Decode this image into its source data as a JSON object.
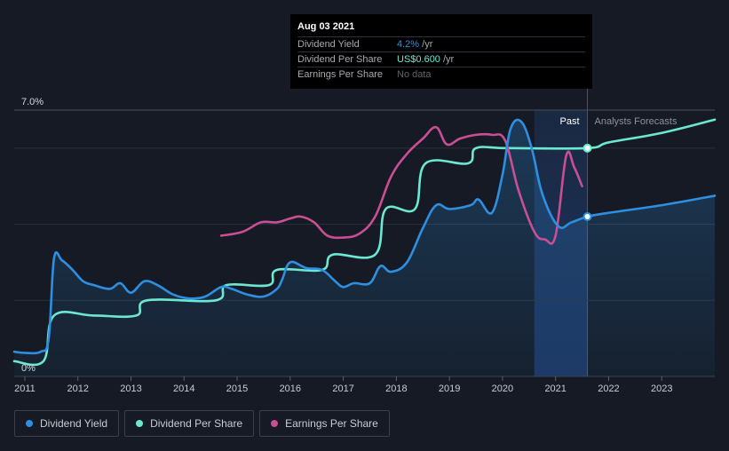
{
  "tooltip": {
    "date": "Aug 03 2021",
    "rows": [
      {
        "label": "Dividend Yield",
        "value": "4.2%",
        "unit": " /yr"
      },
      {
        "label": "Dividend Per Share",
        "value": "US$0.600",
        "unit": " /yr"
      },
      {
        "label": "Earnings Per Share",
        "value": "No data",
        "unit": ""
      }
    ]
  },
  "region_labels": {
    "past": "Past",
    "forecast": "Analysts Forecasts"
  },
  "legend": [
    {
      "label": "Dividend Yield",
      "color": "#2e8fe0"
    },
    {
      "label": "Dividend Per Share",
      "color": "#6ce8d2"
    },
    {
      "label": "Earnings Per Share",
      "color": "#c94f94"
    }
  ],
  "colors": {
    "background": "#151a24",
    "yield": "#2e8fe0",
    "dps": "#6ce8d2",
    "eps": "#c94f94",
    "past_band": "#1a2b48"
  },
  "chart_data": {
    "type": "line",
    "xlim": [
      2010.8,
      2024.0
    ],
    "ylim": [
      0,
      7.0
    ],
    "y_tick_labels": [
      "7.0%",
      "0%"
    ],
    "x_tick_labels": [
      "2011",
      "2012",
      "2013",
      "2014",
      "2015",
      "2016",
      "2017",
      "2018",
      "2019",
      "2020",
      "2021",
      "2022",
      "2023"
    ],
    "x_ticks": [
      2011,
      2012,
      2013,
      2014,
      2015,
      2016,
      2017,
      2018,
      2019,
      2020,
      2021,
      2022,
      2023
    ],
    "past_band": [
      2020.6,
      2021.6
    ],
    "gridlines": [
      7.0,
      6.0,
      4.0,
      2.0
    ],
    "series": [
      {
        "name": "Dividend Yield",
        "color": "#2e8fe0",
        "fill": true,
        "points": [
          [
            2010.8,
            0.65
          ],
          [
            2011.0,
            0.62
          ],
          [
            2011.3,
            0.65
          ],
          [
            2011.45,
            1.0
          ],
          [
            2011.55,
            3.1
          ],
          [
            2011.7,
            3.05
          ],
          [
            2011.9,
            2.8
          ],
          [
            2012.1,
            2.5
          ],
          [
            2012.3,
            2.4
          ],
          [
            2012.6,
            2.3
          ],
          [
            2012.8,
            2.45
          ],
          [
            2013.0,
            2.2
          ],
          [
            2013.25,
            2.5
          ],
          [
            2013.5,
            2.4
          ],
          [
            2013.8,
            2.15
          ],
          [
            2014.1,
            2.05
          ],
          [
            2014.4,
            2.1
          ],
          [
            2014.7,
            2.35
          ],
          [
            2014.9,
            2.3
          ],
          [
            2015.2,
            2.15
          ],
          [
            2015.5,
            2.1
          ],
          [
            2015.75,
            2.3
          ],
          [
            2015.85,
            2.55
          ],
          [
            2016.0,
            3.0
          ],
          [
            2016.3,
            2.85
          ],
          [
            2016.6,
            2.8
          ],
          [
            2016.85,
            2.5
          ],
          [
            2017.0,
            2.35
          ],
          [
            2017.2,
            2.45
          ],
          [
            2017.5,
            2.45
          ],
          [
            2017.7,
            2.9
          ],
          [
            2017.9,
            2.75
          ],
          [
            2018.2,
            3.0
          ],
          [
            2018.5,
            3.9
          ],
          [
            2018.75,
            4.5
          ],
          [
            2019.0,
            4.4
          ],
          [
            2019.4,
            4.5
          ],
          [
            2019.55,
            4.65
          ],
          [
            2019.8,
            4.3
          ],
          [
            2020.0,
            5.3
          ],
          [
            2020.15,
            6.5
          ],
          [
            2020.35,
            6.7
          ],
          [
            2020.55,
            6.0
          ],
          [
            2020.75,
            4.8
          ],
          [
            2021.05,
            3.95
          ],
          [
            2021.3,
            4.05
          ],
          [
            2021.6,
            4.2
          ],
          [
            2022.0,
            4.3
          ],
          [
            2023.0,
            4.5
          ],
          [
            2024.0,
            4.75
          ]
        ]
      },
      {
        "name": "Dividend Per Share",
        "color": "#6ce8d2",
        "fill": false,
        "points": [
          [
            2010.8,
            0.4
          ],
          [
            2011.35,
            0.4
          ],
          [
            2011.55,
            1.6
          ],
          [
            2012.3,
            1.6
          ],
          [
            2013.1,
            1.6
          ],
          [
            2013.3,
            2.0
          ],
          [
            2014.6,
            2.0
          ],
          [
            2014.8,
            2.4
          ],
          [
            2015.6,
            2.4
          ],
          [
            2015.75,
            2.8
          ],
          [
            2016.6,
            2.8
          ],
          [
            2016.8,
            3.2
          ],
          [
            2017.6,
            3.2
          ],
          [
            2017.8,
            4.4
          ],
          [
            2018.35,
            4.4
          ],
          [
            2018.55,
            5.6
          ],
          [
            2019.35,
            5.6
          ],
          [
            2019.5,
            6.0
          ],
          [
            2020.1,
            6.0
          ],
          [
            2021.6,
            6.0
          ],
          [
            2022.0,
            6.15
          ],
          [
            2023.0,
            6.4
          ],
          [
            2024.0,
            6.75
          ]
        ]
      },
      {
        "name": "Earnings Per Share",
        "color": "#c94f94",
        "fill": false,
        "points": [
          [
            2014.7,
            3.7
          ],
          [
            2015.1,
            3.8
          ],
          [
            2015.45,
            4.05
          ],
          [
            2015.75,
            4.05
          ],
          [
            2016.0,
            4.15
          ],
          [
            2016.2,
            4.2
          ],
          [
            2016.45,
            4.05
          ],
          [
            2016.7,
            3.7
          ],
          [
            2017.0,
            3.65
          ],
          [
            2017.3,
            3.75
          ],
          [
            2017.6,
            4.2
          ],
          [
            2017.9,
            5.25
          ],
          [
            2018.2,
            5.85
          ],
          [
            2018.5,
            6.25
          ],
          [
            2018.75,
            6.55
          ],
          [
            2018.95,
            6.1
          ],
          [
            2019.2,
            6.25
          ],
          [
            2019.5,
            6.35
          ],
          [
            2019.8,
            6.35
          ],
          [
            2020.05,
            6.2
          ],
          [
            2020.3,
            4.9
          ],
          [
            2020.6,
            3.8
          ],
          [
            2020.8,
            3.6
          ],
          [
            2021.0,
            3.7
          ],
          [
            2021.2,
            5.8
          ],
          [
            2021.35,
            5.5
          ],
          [
            2021.5,
            5.0
          ]
        ]
      }
    ],
    "markers": [
      {
        "series": "Dividend Yield",
        "x": 2021.6,
        "y": 4.2
      },
      {
        "series": "Dividend Per Share",
        "x": 2021.6,
        "y": 6.0
      }
    ]
  }
}
